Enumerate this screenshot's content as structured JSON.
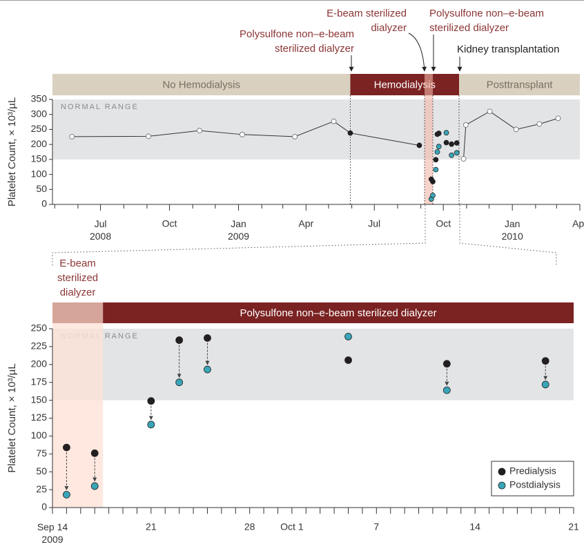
{
  "chart_data": [
    {
      "type": "line",
      "ylabel": "Platelet Count, × 10³/µL",
      "normal_range_label": "NORMAL RANGE",
      "normal_range": [
        150,
        450
      ],
      "normal_color": "#e3e4e6",
      "xlim": [
        "2008-04-28",
        "2010-04-01"
      ],
      "ylim": [
        0,
        350
      ],
      "yticks": [
        0,
        50,
        100,
        150,
        200,
        250,
        300,
        350
      ],
      "xticks": [
        {
          "value": "2008-07-01",
          "label": "Jul\n2008"
        },
        {
          "value": "2008-10-01",
          "label": "Oct"
        },
        {
          "value": "2009-01-01",
          "label": "Jan\n2009"
        },
        {
          "value": "2009-04-01",
          "label": "Apr"
        },
        {
          "value": "2009-07-01",
          "label": "Jul"
        },
        {
          "value": "2009-10-01",
          "label": "Oct"
        },
        {
          "value": "2010-01-01",
          "label": "Jan\n2010"
        },
        {
          "value": "2010-04-01",
          "label": "Apr"
        }
      ],
      "xticks_minor": [
        "2008-05-01",
        "2008-06-01",
        "2008-08-01",
        "2008-09-01",
        "2008-11-01",
        "2008-12-01",
        "2009-02-01",
        "2009-03-01",
        "2009-05-01",
        "2009-06-01",
        "2009-08-01",
        "2009-09-01",
        "2009-11-01",
        "2009-12-01",
        "2010-02-01",
        "2010-03-01"
      ],
      "periods": [
        {
          "label": "No Hemodialysis",
          "start": "2008-04-28",
          "end": "2009-05-30",
          "color": "#d9d0bf",
          "text_color": "#7a6f63"
        },
        {
          "label": "Hemodialysis",
          "start": "2009-05-30",
          "end": "2009-10-22",
          "color": "#7b2222",
          "text_color": "#ffffff"
        },
        {
          "label": "Posttransplant",
          "start": "2009-10-22",
          "end": "2010-04-01",
          "color": "#d9d0bf",
          "text_color": "#7a6f63"
        }
      ],
      "highlight": {
        "start": "2009-09-06",
        "end": "2009-09-17",
        "color": "#f2b8a8"
      },
      "boundary_lines": true,
      "annotations": [
        {
          "text": "Polysulfone non–e-beam\nsterilized dialyzer",
          "x": "2009-05-30",
          "color": "#8b3535"
        },
        {
          "text": "E-beam sterilized\ndialyzer",
          "x": "2009-09-06",
          "color": "#8b3535"
        },
        {
          "text": "Polysulfone non–e-beam\nsterilized dialyzer",
          "x": "2009-09-17",
          "color": "#8b3535"
        },
        {
          "text": "Kidney transplantation",
          "x": "2009-10-22",
          "color": "#222222"
        }
      ],
      "series": [
        {
          "line": true,
          "color": "#333333",
          "x": [
            "2008-05-24",
            "2008-09-03",
            "2008-11-10",
            "2009-01-06",
            "2009-03-17",
            "2009-05-08",
            "2009-05-30",
            "2009-08-30"
          ],
          "values": [
            226,
            227,
            246,
            233,
            226,
            277,
            238,
            197
          ],
          "marker_colors": [
            "#ffffff",
            "#ffffff",
            "#ffffff",
            "#ffffff",
            "#ffffff",
            "#ffffff",
            "#231f20",
            "#231f20"
          ]
        },
        {
          "line": true,
          "color": "#333333",
          "x": [
            "2009-10-28",
            "2009-10-31",
            "2009-12-02",
            "2010-01-06",
            "2010-02-06",
            "2010-03-03"
          ],
          "values": [
            152,
            265,
            310,
            250,
            268,
            287
          ],
          "marker_colors": [
            "#ffffff",
            "#ffffff",
            "#ffffff",
            "#ffffff",
            "#ffffff",
            "#ffffff"
          ]
        },
        {
          "line": false,
          "color": "#231f20",
          "x": [
            "2009-09-15",
            "2009-09-17",
            "2009-09-21",
            "2009-09-23",
            "2009-09-25",
            "2009-10-05",
            "2009-10-12",
            "2009-10-19"
          ],
          "values": [
            84,
            76,
            149,
            234,
            237,
            206,
            201,
            205
          ]
        },
        {
          "line": false,
          "color": "#3aa5b8",
          "x": [
            "2009-09-15",
            "2009-09-17",
            "2009-09-21",
            "2009-09-23",
            "2009-09-25",
            "2009-10-05",
            "2009-10-12",
            "2009-10-19"
          ],
          "values": [
            18,
            30,
            116,
            175,
            193,
            239,
            164,
            172
          ]
        }
      ]
    },
    {
      "type": "scatter",
      "ylabel": "Platelet Count, × 10³/µL",
      "normal_range_label": "NORMAL RANGE",
      "normal_range": [
        150,
        450
      ],
      "normal_color": "#e3e4e6",
      "xlim": [
        "2009-09-14",
        "2009-10-21"
      ],
      "ylim": [
        0,
        250
      ],
      "yticks": [
        0,
        25,
        50,
        75,
        100,
        125,
        150,
        175,
        200,
        225,
        250
      ],
      "xticks": [
        {
          "value": "2009-09-14",
          "label": "Sep 14\n2009"
        },
        {
          "value": "2009-09-21",
          "label": "21"
        },
        {
          "value": "2009-09-28",
          "label": "28"
        },
        {
          "value": "2009-10-01",
          "label": "Oct 1"
        },
        {
          "value": "2009-10-07",
          "label": "7"
        },
        {
          "value": "2009-10-14",
          "label": "14"
        },
        {
          "value": "2009-10-21",
          "label": "21"
        }
      ],
      "xticks_minor": [
        "2009-09-15",
        "2009-09-16",
        "2009-09-17",
        "2009-09-18",
        "2009-09-19",
        "2009-09-20",
        "2009-09-22",
        "2009-09-23",
        "2009-09-24",
        "2009-09-25",
        "2009-09-26",
        "2009-09-27",
        "2009-09-29",
        "2009-09-30",
        "2009-10-02",
        "2009-10-03",
        "2009-10-04",
        "2009-10-05",
        "2009-10-06",
        "2009-10-08",
        "2009-10-09",
        "2009-10-10",
        "2009-10-11",
        "2009-10-12",
        "2009-10-13",
        "2009-10-15",
        "2009-10-16",
        "2009-10-17",
        "2009-10-18",
        "2009-10-19",
        "2009-10-20"
      ],
      "periods": [
        {
          "label": "E-beam\nsterilized\ndialyzer",
          "label_above": true,
          "start": "2009-09-14",
          "end": "2009-09-17T14:00",
          "color": "#a65a4c",
          "text_color": "#8b3535"
        },
        {
          "label": "Polysulfone non–e-beam sterilized dialyzer",
          "start": "2009-09-17T14:00",
          "end": "2009-10-21",
          "color": "#7b2222",
          "text_color": "#ffffff"
        }
      ],
      "highlight": {
        "start": "2009-09-14",
        "end": "2009-09-17T14:00",
        "color": "#fde3d8"
      },
      "arrows": true,
      "legend": "lower right",
      "series": [
        {
          "name": "Predialysis",
          "color": "#231f20",
          "x": [
            "2009-09-15",
            "2009-09-17",
            "2009-09-21",
            "2009-09-23",
            "2009-09-25",
            "2009-10-05",
            "2009-10-12",
            "2009-10-19"
          ],
          "values": [
            84,
            76,
            149,
            234,
            237,
            206,
            201,
            205
          ]
        },
        {
          "name": "Postdialysis",
          "color": "#3aa5b8",
          "x": [
            "2009-09-15",
            "2009-09-17",
            "2009-09-21",
            "2009-09-23",
            "2009-09-25",
            "2009-10-05",
            "2009-10-12",
            "2009-10-19"
          ],
          "values": [
            18,
            30,
            116,
            175,
            193,
            239,
            164,
            172
          ]
        }
      ]
    }
  ]
}
